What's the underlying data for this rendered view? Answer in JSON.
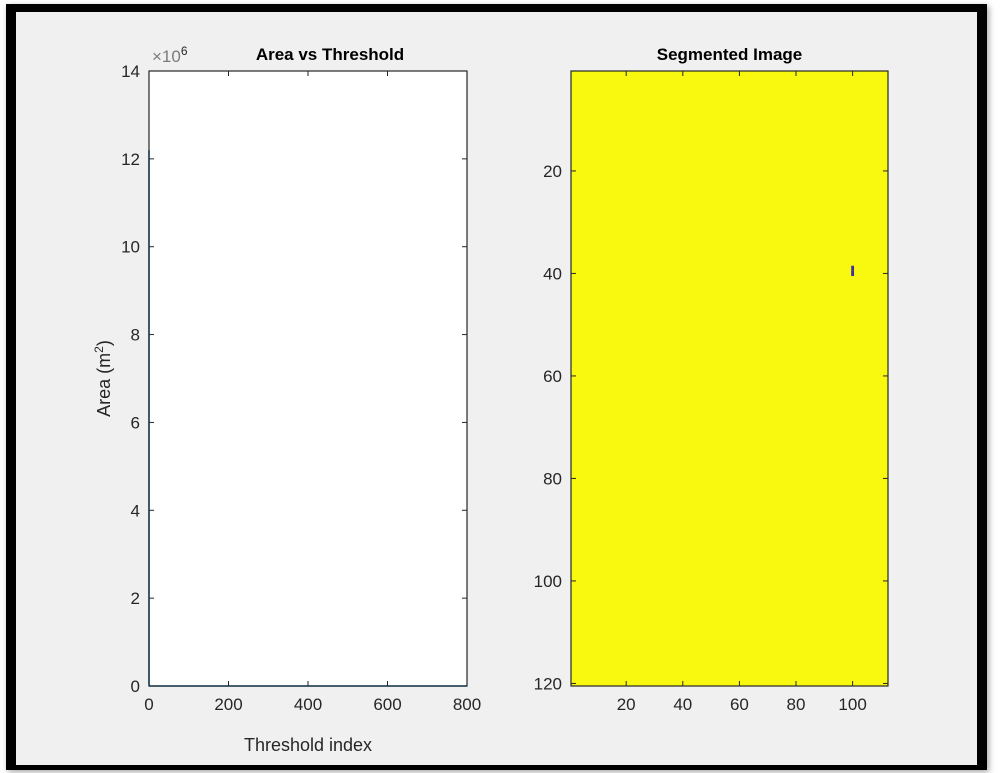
{
  "chart_data": [
    {
      "type": "line",
      "title": "Area vs Threshold",
      "xlabel": "Threshold index",
      "ylabel_main": "Area (m",
      "ylabel_sup": "2",
      "ylabel_close": ")",
      "xlim": [
        0,
        800
      ],
      "ylim": [
        0,
        14
      ],
      "y_exponent_prefix": "×10",
      "y_exponent_power": "6",
      "xticks": [
        0,
        200,
        400,
        600,
        800
      ],
      "yticks": [
        0,
        2,
        4,
        6,
        8,
        10,
        12,
        14
      ],
      "grid": false,
      "background": "#ffffff",
      "series_color": "#0072bd",
      "series": [
        {
          "x": [
            0,
            0,
            1,
            800
          ],
          "y": [
            12.2,
            0.05,
            0,
            0
          ]
        }
      ]
    },
    {
      "type": "heatmap",
      "title": "Segmented Image",
      "xlim": [
        0.5,
        112.5
      ],
      "ylim": [
        120.5,
        0.5
      ],
      "xticks": [
        20,
        40,
        60,
        80,
        100
      ],
      "yticks": [
        20,
        40,
        60,
        80,
        100,
        120
      ],
      "y_reversed": true,
      "grid": false,
      "background_value_color": "#f9f90f",
      "foreground_value_color": "#3e2fa0",
      "foreground_pixels": [
        {
          "col": 100,
          "row": 39
        },
        {
          "col": 100,
          "row": 40
        }
      ]
    }
  ]
}
